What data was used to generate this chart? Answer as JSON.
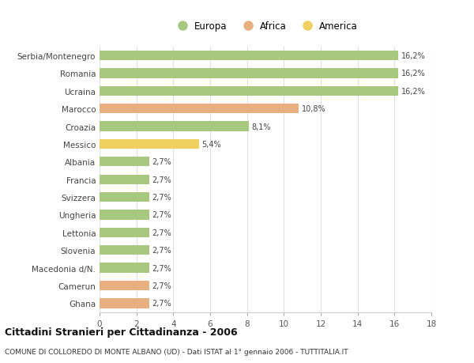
{
  "categories": [
    "Serbia/Montenegro",
    "Romania",
    "Ucraina",
    "Marocco",
    "Croazia",
    "Messico",
    "Albania",
    "Francia",
    "Svizzera",
    "Ungheria",
    "Lettonia",
    "Slovenia",
    "Macedonia d/N.",
    "Camerun",
    "Ghana"
  ],
  "values": [
    16.2,
    16.2,
    16.2,
    10.8,
    8.1,
    5.4,
    2.7,
    2.7,
    2.7,
    2.7,
    2.7,
    2.7,
    2.7,
    2.7,
    2.7
  ],
  "labels": [
    "16,2%",
    "16,2%",
    "16,2%",
    "10,8%",
    "8,1%",
    "5,4%",
    "2,7%",
    "2,7%",
    "2,7%",
    "2,7%",
    "2,7%",
    "2,7%",
    "2,7%",
    "2,7%",
    "2,7%"
  ],
  "continents": [
    "Europa",
    "Europa",
    "Europa",
    "Africa",
    "Europa",
    "America",
    "Europa",
    "Europa",
    "Europa",
    "Europa",
    "Europa",
    "Europa",
    "Europa",
    "Africa",
    "Africa"
  ],
  "colors": {
    "Europa": "#a8c880",
    "Africa": "#e8b080",
    "America": "#f0d060"
  },
  "xlim": [
    0,
    18
  ],
  "xticks": [
    0,
    2,
    4,
    6,
    8,
    10,
    12,
    14,
    16,
    18
  ],
  "title": "Cittadini Stranieri per Cittadinanza - 2006",
  "subtitle": "COMUNE DI COLLOREDO DI MONTE ALBANO (UD) - Dati ISTAT al 1° gennaio 2006 - TUTTITALIA.IT",
  "background_color": "#ffffff",
  "grid_color": "#e0e0e0",
  "bar_height": 0.55
}
